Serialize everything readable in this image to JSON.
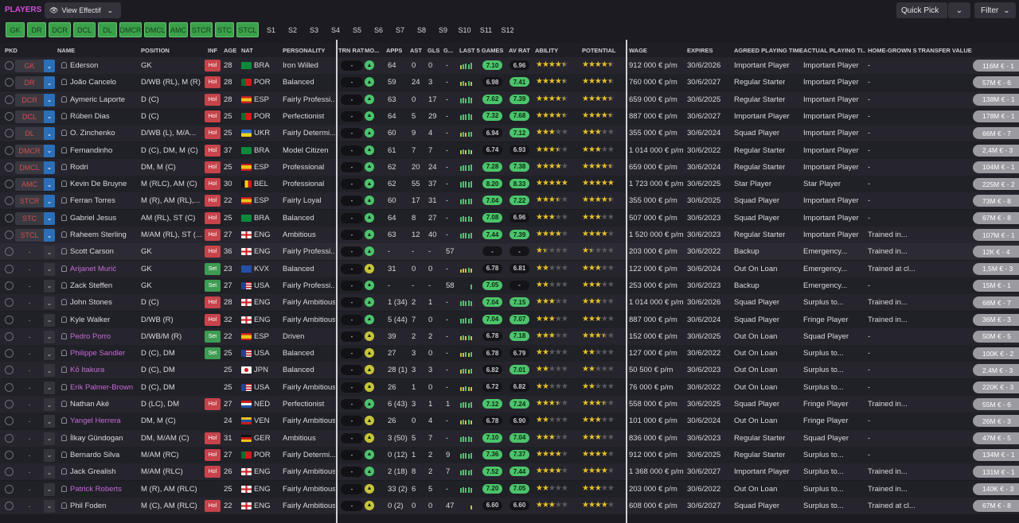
{
  "header": {
    "title": "PLAYERS",
    "view_label": "View Effectif",
    "quick_pick": "Quick Pick",
    "filter": "Filter"
  },
  "positions": [
    "GK",
    "DR",
    "DCR",
    "DCL",
    "DL",
    "DMCR",
    "DMCL",
    "AMC",
    "STCR",
    "STC",
    "STCL",
    "S1",
    "S2",
    "S3",
    "S4",
    "S5",
    "S6",
    "S7",
    "S8",
    "S9",
    "S10",
    "S11",
    "S12"
  ],
  "columns": {
    "pkd": "PKD",
    "name": "NAME",
    "position": "POSITION",
    "inf": "INF",
    "age": "AGE",
    "nat": "NAT",
    "personality": "PERSONALITY",
    "trn": "TRN RAT",
    "mo": "MO...",
    "apps": "APPS",
    "ast": "AST",
    "gls": "GLS",
    "g": "G...",
    "last5": "LAST 5 GAMES",
    "avrat": "AV RAT",
    "ability": "ABILITY",
    "potential": "POTENTIAL",
    "wage": "WAGE",
    "expires": "EXPIRES",
    "agreed": "AGREED PLAYING TIME",
    "actual": "ACTUAL PLAYING TI...",
    "hg": "HOME-GROWN S...",
    "tv": "TRANSFER VALUE"
  },
  "colors": {
    "accent": "#d04fd6",
    "green": "#4bc46b",
    "hol": "#c8434a",
    "set": "#3e9c52"
  },
  "players": [
    {
      "slot": "GK",
      "name": "Ederson",
      "pos": "GK",
      "inf": "Hol",
      "age": "28",
      "nat": "BRA",
      "flag": "bra",
      "pers": "Iron Willed",
      "trn": "-",
      "mo": "g",
      "apps": "64",
      "ast": "0",
      "gls": "0",
      "g": "-",
      "form": [
        5,
        6,
        7,
        6,
        8
      ],
      "last": "7.10",
      "lastg": true,
      "av": "6.96",
      "avg": false,
      "ab": 4.5,
      "pot": 4.5,
      "wage": "912 000 € p/m",
      "exp": "30/6/2026",
      "agreed": "Important Player",
      "actual": "Important Player",
      "hg": "-",
      "tv": "116M € - 1"
    },
    {
      "slot": "DR",
      "name": "João Cancelo",
      "pos": "D/WB (RL), M (R)",
      "inf": "Hol",
      "age": "28",
      "nat": "POR",
      "flag": "por",
      "pers": "Balanced",
      "trn": "-",
      "mo": "g",
      "apps": "59",
      "ast": "24",
      "gls": "3",
      "g": "-",
      "form": [
        5,
        6,
        4,
        6,
        5
      ],
      "last": "6.98",
      "lastg": false,
      "av": "7.41",
      "avg": true,
      "ab": 4.5,
      "pot": 4.5,
      "wage": "760 000 € p/m",
      "exp": "30/6/2027",
      "agreed": "Regular Starter",
      "actual": "Important Player",
      "hg": "-",
      "tv": "57M € - 6"
    },
    {
      "slot": "DCR",
      "name": "Aymeric Laporte",
      "pos": "D (C)",
      "inf": "Hol",
      "age": "28",
      "nat": "ESP",
      "flag": "esp",
      "pers": "Fairly Professi...",
      "trn": "-",
      "mo": "g",
      "apps": "63",
      "ast": "0",
      "gls": "17",
      "g": "-",
      "form": [
        6,
        7,
        6,
        8,
        7
      ],
      "last": "7.62",
      "lastg": true,
      "av": "7.39",
      "avg": true,
      "ab": 4.5,
      "pot": 4.5,
      "wage": "659 000 € p/m",
      "exp": "30/6/2025",
      "agreed": "Regular Starter",
      "actual": "Important Player",
      "hg": "-",
      "tv": "138M € - 1"
    },
    {
      "slot": "DCL",
      "name": "Rúben Dias",
      "pos": "D (C)",
      "inf": "Hol",
      "age": "25",
      "nat": "POR",
      "flag": "por",
      "pers": "Perfectionist",
      "trn": "-",
      "mo": "g",
      "apps": "64",
      "ast": "5",
      "gls": "29",
      "g": "-",
      "form": [
        6,
        7,
        7,
        8,
        7
      ],
      "last": "7.32",
      "lastg": true,
      "av": "7.68",
      "avg": true,
      "ab": 4.5,
      "pot": 4.5,
      "wage": "887 000 € p/m",
      "exp": "30/6/2027",
      "agreed": "Important Player",
      "actual": "Important Player",
      "hg": "-",
      "tv": "178M € - 1"
    },
    {
      "slot": "DL",
      "name": "O. Zinchenko",
      "pos": "D/WB (L), M/A...",
      "inf": "Hol",
      "age": "25",
      "nat": "UKR",
      "flag": "ukr",
      "pers": "Fairly Determi...",
      "trn": "-",
      "mo": "g",
      "apps": "60",
      "ast": "9",
      "gls": "4",
      "g": "-",
      "form": [
        5,
        6,
        5,
        6,
        6
      ],
      "last": "6.94",
      "lastg": false,
      "av": "7.12",
      "avg": true,
      "ab": 3,
      "pot": 3,
      "wage": "355 000 € p/m",
      "exp": "30/6/2024",
      "agreed": "Squad Player",
      "actual": "Important Player",
      "hg": "-",
      "tv": "66M € - 7"
    },
    {
      "slot": "DMCR",
      "name": "Fernandinho",
      "pos": "D (C), DM, M (C)",
      "inf": "Hol",
      "age": "37",
      "nat": "BRA",
      "flag": "bra",
      "pers": "Model Citizen",
      "trn": "-",
      "mo": "g",
      "apps": "61",
      "ast": "7",
      "gls": "7",
      "g": "-",
      "form": [
        5,
        6,
        5,
        6,
        5
      ],
      "last": "6.74",
      "lastg": false,
      "av": "6.93",
      "avg": false,
      "ab": 3.5,
      "pot": 3,
      "wage": "1 014 000 € p/m",
      "exp": "30/6/2022",
      "agreed": "Regular Starter",
      "actual": "Important Player",
      "hg": "-",
      "tv": "2,4M € - 3"
    },
    {
      "slot": "DMCL",
      "name": "Rodri",
      "pos": "DM, M (C)",
      "inf": "Hol",
      "age": "25",
      "nat": "ESP",
      "flag": "esp",
      "pers": "Professional",
      "trn": "-",
      "mo": "g",
      "apps": "62",
      "ast": "20",
      "gls": "24",
      "g": "-",
      "form": [
        6,
        7,
        7,
        7,
        8
      ],
      "last": "7.28",
      "lastg": true,
      "av": "7.38",
      "avg": true,
      "ab": 4,
      "pot": 4.5,
      "wage": "659 000 € p/m",
      "exp": "30/6/2024",
      "agreed": "Regular Starter",
      "actual": "Important Player",
      "hg": "-",
      "tv": "104M € - 1"
    },
    {
      "slot": "AMC",
      "name": "Kevin De Bruyne",
      "pos": "M (RLC), AM (C)",
      "inf": "Hol",
      "age": "30",
      "nat": "BEL",
      "flag": "bel",
      "pers": "Professional",
      "trn": "-",
      "mo": "g",
      "apps": "62",
      "ast": "55",
      "gls": "37",
      "g": "-",
      "form": [
        7,
        8,
        8,
        7,
        8
      ],
      "last": "8.20",
      "lastg": true,
      "av": "8.33",
      "avg": true,
      "ab": 5,
      "pot": 5,
      "wage": "1 723 000 € p/m",
      "exp": "30/6/2025",
      "agreed": "Star Player",
      "actual": "Star Player",
      "hg": "-",
      "tv": "225M € - 2"
    },
    {
      "slot": "STCR",
      "name": "Ferran Torres",
      "pos": "M (R), AM (RL),...",
      "inf": "Hol",
      "age": "22",
      "nat": "ESP",
      "flag": "esp",
      "pers": "Fairly Loyal",
      "trn": "-",
      "mo": "g",
      "apps": "60",
      "ast": "17",
      "gls": "31",
      "g": "-",
      "form": [
        6,
        7,
        6,
        7,
        7
      ],
      "last": "7.04",
      "lastg": true,
      "av": "7.22",
      "avg": true,
      "ab": 3.5,
      "pot": 4.5,
      "wage": "355 000 € p/m",
      "exp": "30/6/2025",
      "agreed": "Squad Player",
      "actual": "Important Player",
      "hg": "-",
      "tv": "73M € - 8"
    },
    {
      "slot": "STC",
      "name": "Gabriel Jesus",
      "pos": "AM (RL), ST (C)",
      "inf": "Hol",
      "age": "25",
      "nat": "BRA",
      "flag": "bra",
      "pers": "Balanced",
      "trn": "-",
      "mo": "g",
      "apps": "64",
      "ast": "8",
      "gls": "27",
      "g": "-",
      "form": [
        6,
        7,
        6,
        7,
        6
      ],
      "last": "7.08",
      "lastg": true,
      "av": "6.96",
      "avg": false,
      "ab": 3,
      "pot": 3,
      "wage": "507 000 € p/m",
      "exp": "30/6/2023",
      "agreed": "Squad Player",
      "actual": "Important Player",
      "hg": "-",
      "tv": "67M € - 8"
    },
    {
      "slot": "STCL",
      "name": "Raheem Sterling",
      "pos": "M/AM (RL), ST (...",
      "inf": "Hol",
      "age": "27",
      "nat": "ENG",
      "flag": "eng",
      "pers": "Ambitious",
      "trn": "-",
      "mo": "g",
      "apps": "63",
      "ast": "12",
      "gls": "40",
      "g": "-",
      "form": [
        6,
        7,
        7,
        6,
        7
      ],
      "last": "7.44",
      "lastg": true,
      "av": "7.39",
      "avg": true,
      "ab": 4,
      "pot": 4,
      "wage": "1 520 000 € p/m",
      "exp": "30/6/2023",
      "agreed": "Regular Starter",
      "actual": "Important Player",
      "hg": "Trained in...",
      "tv": "107M € - 1"
    },
    {
      "slot": "-",
      "name": "Scott Carson",
      "pos": "GK",
      "inf": "Hol",
      "age": "36",
      "nat": "ENG",
      "flag": "eng",
      "pers": "Fairly Professi...",
      "trn": "-",
      "mo": "g",
      "apps": "-",
      "ast": "-",
      "gls": "-",
      "g": "57",
      "form": [],
      "last": "-",
      "lastg": false,
      "av": "-",
      "avg": false,
      "ab": 1.5,
      "pot": 1.5,
      "wage": "203 000 € p/m",
      "exp": "30/6/2022",
      "agreed": "Backup",
      "actual": "Emergency...",
      "hg": "Trained in...",
      "tv": "12K € - 4",
      "dark": true
    },
    {
      "slot": "-",
      "name": "Arijanet Murić",
      "pos": "GK",
      "inf": "Set",
      "age": "23",
      "nat": "KVX",
      "flag": "kvx",
      "pers": "Balanced",
      "trn": "-",
      "mo": "y",
      "apps": "31",
      "ast": "0",
      "gls": "0",
      "g": "-",
      "form": [
        4,
        5,
        5,
        6,
        5
      ],
      "last": "6.78",
      "lastg": false,
      "av": "6.81",
      "avg": false,
      "ab": 2,
      "pot": 3,
      "wage": "122 000 € p/m",
      "exp": "30/6/2024",
      "agreed": "Out On Loan",
      "actual": "Emergency...",
      "hg": "Trained at cl...",
      "tv": "1,5M € - 3",
      "loan": true
    },
    {
      "slot": "-",
      "name": "Zack Steffen",
      "pos": "GK",
      "inf": "Set",
      "age": "27",
      "nat": "USA",
      "flag": "usa",
      "pers": "Fairly Professi...",
      "trn": "-",
      "mo": "g",
      "apps": "-",
      "ast": "-",
      "gls": "-",
      "g": "58",
      "form": [
        6
      ],
      "last": "7.05",
      "lastg": true,
      "av": "-",
      "avg": false,
      "ab": 2,
      "pot": 3,
      "wage": "253 000 € p/m",
      "exp": "30/6/2023",
      "agreed": "Backup",
      "actual": "Emergency...",
      "hg": "-",
      "tv": "15M € - 1"
    },
    {
      "slot": "-",
      "name": "John Stones",
      "pos": "D (C)",
      "inf": "Hol",
      "age": "28",
      "nat": "ENG",
      "flag": "eng",
      "pers": "Fairly Ambitious",
      "trn": "-",
      "mo": "g",
      "apps": "1 (34)",
      "ast": "2",
      "gls": "1",
      "g": "-",
      "form": [
        6,
        7,
        6,
        7,
        6
      ],
      "last": "7.04",
      "lastg": true,
      "av": "7.15",
      "avg": true,
      "ab": 3,
      "pot": 3,
      "wage": "1 014 000 € p/m",
      "exp": "30/6/2026",
      "agreed": "Squad Player",
      "actual": "Surplus to...",
      "hg": "Trained in...",
      "tv": "68M € - 7"
    },
    {
      "slot": "-",
      "name": "Kyle Walker",
      "pos": "D/WB (R)",
      "inf": "Hol",
      "age": "32",
      "nat": "ENG",
      "flag": "eng",
      "pers": "Fairly Ambitious",
      "trn": "-",
      "mo": "g",
      "apps": "5 (44)",
      "ast": "7",
      "gls": "0",
      "g": "-",
      "form": [
        6,
        6,
        7,
        6,
        7
      ],
      "last": "7.04",
      "lastg": true,
      "av": "7.07",
      "avg": true,
      "ab": 3,
      "pot": 3,
      "wage": "887 000 € p/m",
      "exp": "30/6/2024",
      "agreed": "Squad Player",
      "actual": "Fringe Player",
      "hg": "Trained in...",
      "tv": "36M € - 3"
    },
    {
      "slot": "-",
      "name": "Pedro Porro",
      "pos": "D/WB/M (R)",
      "inf": "Set",
      "age": "22",
      "nat": "ESP",
      "flag": "esp",
      "pers": "Driven",
      "trn": "-",
      "mo": "y",
      "apps": "39",
      "ast": "2",
      "gls": "2",
      "g": "-",
      "form": [
        5,
        6,
        5,
        6,
        5
      ],
      "last": "6.78",
      "lastg": false,
      "av": "7.18",
      "avg": true,
      "ab": 3,
      "pot": 3.5,
      "wage": "152 000 € p/m",
      "exp": "30/6/2025",
      "agreed": "Out On Loan",
      "actual": "Squad Player",
      "hg": "-",
      "tv": "50M € - 5",
      "loan": true
    },
    {
      "slot": "-",
      "name": "Philippe Sandler",
      "pos": "D (C), DM",
      "inf": "Set",
      "age": "25",
      "nat": "USA",
      "flag": "usa",
      "pers": "Balanced",
      "trn": "-",
      "mo": "y",
      "apps": "27",
      "ast": "3",
      "gls": "0",
      "g": "-",
      "form": [
        5,
        5,
        6,
        5,
        6
      ],
      "last": "6.78",
      "lastg": false,
      "av": "6.79",
      "avg": false,
      "ab": 2,
      "pot": 2,
      "wage": "127 000 € p/m",
      "exp": "30/6/2022",
      "agreed": "Out On Loan",
      "actual": "Surplus to...",
      "hg": "-",
      "tv": "100K € - 2",
      "loan": true
    },
    {
      "slot": "-",
      "name": "Kō Itakura",
      "pos": "D (C), DM",
      "inf": "",
      "age": "25",
      "nat": "JPN",
      "flag": "jpn",
      "pers": "Balanced",
      "trn": "-",
      "mo": "y",
      "apps": "28 (1)",
      "ast": "3",
      "gls": "3",
      "g": "-",
      "form": [
        5,
        6,
        6,
        5,
        6
      ],
      "last": "6.82",
      "lastg": false,
      "av": "7.01",
      "avg": true,
      "ab": 2,
      "pot": 2,
      "wage": "50 500 € p/m",
      "exp": "30/6/2023",
      "agreed": "Out On Loan",
      "actual": "Surplus to...",
      "hg": "-",
      "tv": "2,4M € - 3",
      "loan": true
    },
    {
      "slot": "-",
      "name": "Erik Palmer-Brown",
      "pos": "D (C), DM",
      "inf": "",
      "age": "25",
      "nat": "USA",
      "flag": "usa",
      "pers": "Fairly Ambitious",
      "trn": "-",
      "mo": "y",
      "apps": "26",
      "ast": "1",
      "gls": "0",
      "g": "-",
      "form": [
        5,
        5,
        6,
        5,
        5
      ],
      "last": "6.72",
      "lastg": false,
      "av": "6.82",
      "avg": false,
      "ab": 2,
      "pot": 2,
      "wage": "76 000 € p/m",
      "exp": "30/6/2022",
      "agreed": "Out On Loan",
      "actual": "Surplus to...",
      "hg": "-",
      "tv": "220K € - 3",
      "loan": true
    },
    {
      "slot": "-",
      "name": "Nathan Aké",
      "pos": "D (LC), DM",
      "inf": "Hol",
      "age": "27",
      "nat": "NED",
      "flag": "ned",
      "pers": "Perfectionist",
      "trn": "-",
      "mo": "g",
      "apps": "6 (43)",
      "ast": "3",
      "gls": "1",
      "g": "1",
      "form": [
        6,
        7,
        7,
        6,
        7
      ],
      "last": "7.12",
      "lastg": true,
      "av": "7.24",
      "avg": true,
      "ab": 3.5,
      "pot": 3.5,
      "wage": "558 000 € p/m",
      "exp": "30/6/2025",
      "agreed": "Squad Player",
      "actual": "Fringe Player",
      "hg": "Trained in...",
      "tv": "55M € - 6"
    },
    {
      "slot": "-",
      "name": "Yangel Herrera",
      "pos": "DM, M (C)",
      "inf": "",
      "age": "24",
      "nat": "VEN",
      "flag": "ven",
      "pers": "Fairly Ambitious",
      "trn": "-",
      "mo": "y",
      "apps": "26",
      "ast": "0",
      "gls": "4",
      "g": "-",
      "form": [
        5,
        6,
        5,
        6,
        5
      ],
      "last": "6.78",
      "lastg": false,
      "av": "6.90",
      "avg": false,
      "ab": 2,
      "pot": 3,
      "wage": "101 000 € p/m",
      "exp": "30/6/2024",
      "agreed": "Out On Loan",
      "actual": "Fringe Player",
      "hg": "-",
      "tv": "26M € - 3",
      "loan": true
    },
    {
      "slot": "-",
      "name": "İlkay Gündogan",
      "pos": "DM, M/AM (C)",
      "inf": "Hol",
      "age": "31",
      "nat": "GER",
      "flag": "ger",
      "pers": "Ambitious",
      "trn": "-",
      "mo": "y",
      "apps": "3 (50)",
      "ast": "5",
      "gls": "7",
      "g": "-",
      "form": [
        6,
        7,
        6,
        7,
        6
      ],
      "last": "7.10",
      "lastg": true,
      "av": "7.04",
      "avg": true,
      "ab": 3,
      "pot": 3,
      "wage": "836 000 € p/m",
      "exp": "30/6/2023",
      "agreed": "Regular Starter",
      "actual": "Squad Player",
      "hg": "-",
      "tv": "47M € - 5"
    },
    {
      "slot": "-",
      "name": "Bernardo Silva",
      "pos": "M/AM (RC)",
      "inf": "Hol",
      "age": "27",
      "nat": "POR",
      "flag": "por",
      "pers": "Fairly Determi...",
      "trn": "-",
      "mo": "g",
      "apps": "0 (12)",
      "ast": "1",
      "gls": "2",
      "g": "9",
      "form": [
        6,
        7,
        7,
        6,
        7
      ],
      "last": "7.36",
      "lastg": true,
      "av": "7.37",
      "avg": true,
      "ab": 4,
      "pot": 4,
      "wage": "912 000 € p/m",
      "exp": "30/6/2025",
      "agreed": "Regular Starter",
      "actual": "Surplus to...",
      "hg": "-",
      "tv": "134M € - 1"
    },
    {
      "slot": "-",
      "name": "Jack Grealish",
      "pos": "M/AM (RLC)",
      "inf": "Hol",
      "age": "26",
      "nat": "ENG",
      "flag": "eng",
      "pers": "Fairly Ambitious",
      "trn": "-",
      "mo": "g",
      "apps": "2 (18)",
      "ast": "8",
      "gls": "2",
      "g": "7",
      "form": [
        6,
        7,
        7,
        6,
        7
      ],
      "last": "7.52",
      "lastg": true,
      "av": "7.44",
      "avg": true,
      "ab": 4,
      "pot": 4,
      "wage": "1 368 000 € p/m",
      "exp": "30/6/2027",
      "agreed": "Important Player",
      "actual": "Surplus to...",
      "hg": "Trained in...",
      "tv": "131M € - 1"
    },
    {
      "slot": "-",
      "name": "Patrick Roberts",
      "pos": "M (R), AM (RLC)",
      "inf": "",
      "age": "25",
      "nat": "ENG",
      "flag": "eng",
      "pers": "Fairly Ambitious",
      "trn": "-",
      "mo": "y",
      "apps": "33 (2)",
      "ast": "6",
      "gls": "5",
      "g": "-",
      "form": [
        6,
        7,
        6,
        7,
        6
      ],
      "last": "7.20",
      "lastg": true,
      "av": "7.05",
      "avg": true,
      "ab": 2,
      "pot": 3,
      "wage": "203 000 € p/m",
      "exp": "30/6/2022",
      "agreed": "Out On Loan",
      "actual": "Surplus to...",
      "hg": "Trained in...",
      "tv": "140K € - 3",
      "loan": true
    },
    {
      "slot": "-",
      "name": "Phil Foden",
      "pos": "M (C), AM (RLC)",
      "inf": "Hol",
      "age": "22",
      "nat": "ENG",
      "flag": "eng",
      "pers": "Fairly Ambitious",
      "trn": "-",
      "mo": "y",
      "apps": "0 (2)",
      "ast": "0",
      "gls": "0",
      "g": "47",
      "form": [
        5
      ],
      "last": "6.60",
      "lastg": false,
      "av": "6.60",
      "avg": false,
      "ab": 3,
      "pot": 4,
      "wage": "608 000 € p/m",
      "exp": "30/6/2027",
      "agreed": "Squad Player",
      "actual": "Surplus to...",
      "hg": "Trained at cl...",
      "tv": "67M € - 8"
    }
  ]
}
